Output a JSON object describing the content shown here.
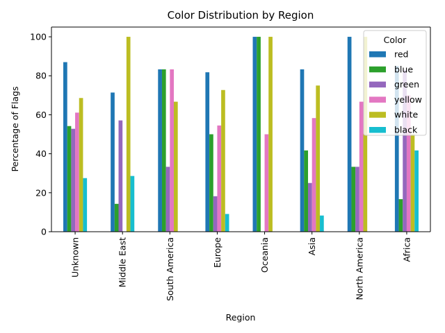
{
  "chart_data": {
    "type": "bar",
    "title": "Color Distribution by Region",
    "xlabel": "Region",
    "ylabel": "Percentage of Flags",
    "ylim": [
      0,
      105
    ],
    "yticks": [
      0,
      20,
      40,
      60,
      80,
      100
    ],
    "categories": [
      "Unknown",
      "Middle East",
      "South America",
      "Europe",
      "Oceania",
      "Asia",
      "North America",
      "Africa"
    ],
    "legend": {
      "title": "Color",
      "placement": "upper-right"
    },
    "series": [
      {
        "name": "red",
        "color": "#1f77b4",
        "values": [
          87,
          71.4,
          83.3,
          81.8,
          100,
          83.3,
          100,
          85
        ]
      },
      {
        "name": "blue",
        "color": "#2ca02c",
        "values": [
          54.2,
          14.3,
          83.3,
          50,
          100,
          41.7,
          33.3,
          16.7
        ]
      },
      {
        "name": "green",
        "color": "#9467bd",
        "values": [
          52.8,
          57.1,
          33.3,
          18.2,
          0,
          25,
          33.3,
          83
        ]
      },
      {
        "name": "yellow",
        "color": "#e377c2",
        "values": [
          61.1,
          0,
          83.3,
          54.5,
          50,
          58.3,
          66.7,
          70
        ]
      },
      {
        "name": "white",
        "color": "#bcbd22",
        "values": [
          68.6,
          100,
          66.7,
          72.7,
          100,
          75,
          100,
          50
        ]
      },
      {
        "name": "black",
        "color": "#17becf",
        "values": [
          27.5,
          28.6,
          0,
          9.1,
          0,
          8.3,
          0,
          41.7
        ]
      }
    ]
  }
}
